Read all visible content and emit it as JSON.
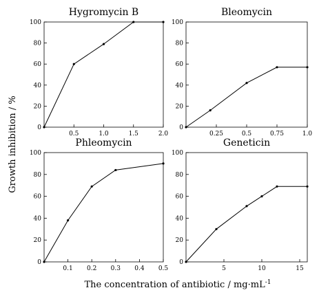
{
  "ylabel": "Growth inhibition / %",
  "xlabel_main": "The concentration of antibiotic / mg·mL",
  "xlabel_sup": "-1",
  "chart_data": [
    {
      "type": "line",
      "title": "Hygromycin B",
      "x": [
        0,
        0.5,
        1.0,
        1.5,
        2.0
      ],
      "values": [
        0,
        60,
        79,
        100,
        100
      ],
      "xlim": [
        0,
        2.0
      ],
      "ylim": [
        0,
        100
      ],
      "xticks": [
        0.5,
        1.0,
        1.5,
        2.0
      ],
      "xtick_labels": [
        "0.5",
        "1.0",
        "1.5",
        "2.0"
      ],
      "yticks": [
        0,
        20,
        40,
        60,
        80,
        100
      ],
      "ytick_labels": [
        "0",
        "20",
        "40",
        "60",
        "80",
        "100"
      ]
    },
    {
      "type": "line",
      "title": "Bleomycin",
      "x": [
        0,
        0.2,
        0.5,
        0.75,
        1.0
      ],
      "values": [
        0,
        16,
        42,
        57,
        57
      ],
      "xlim": [
        0,
        1.0
      ],
      "ylim": [
        0,
        100
      ],
      "xticks": [
        0.25,
        0.5,
        0.75,
        1.0
      ],
      "xtick_labels": [
        "0.25",
        "0.5",
        "0.75",
        "1.0"
      ],
      "yticks": [
        0,
        20,
        40,
        60,
        80,
        100
      ],
      "ytick_labels": [
        "0",
        "20",
        "40",
        "60",
        "80",
        "100"
      ]
    },
    {
      "type": "line",
      "title": "Phleomycin",
      "x": [
        0,
        0.1,
        0.2,
        0.3,
        0.5
      ],
      "values": [
        0,
        38,
        69,
        84,
        90
      ],
      "xlim": [
        0,
        0.5
      ],
      "ylim": [
        0,
        100
      ],
      "xticks": [
        0.1,
        0.2,
        0.3,
        0.4,
        0.5
      ],
      "xtick_labels": [
        "0.1",
        "0.2",
        "0.3",
        "0.4",
        "0.5"
      ],
      "yticks": [
        0,
        20,
        40,
        60,
        80,
        100
      ],
      "ytick_labels": [
        "0",
        "20",
        "40",
        "60",
        "80",
        "100"
      ]
    },
    {
      "type": "line",
      "title": "Geneticin",
      "x": [
        0,
        4,
        8,
        10,
        12,
        16
      ],
      "values": [
        0,
        30,
        51,
        60,
        69,
        69
      ],
      "xlim": [
        0,
        16
      ],
      "ylim": [
        0,
        100
      ],
      "xticks": [
        5,
        10,
        15
      ],
      "xtick_labels": [
        "5",
        "10",
        "15"
      ],
      "yticks": [
        0,
        20,
        40,
        60,
        80,
        100
      ],
      "ytick_labels": [
        "0",
        "20",
        "40",
        "60",
        "80",
        "100"
      ]
    }
  ]
}
